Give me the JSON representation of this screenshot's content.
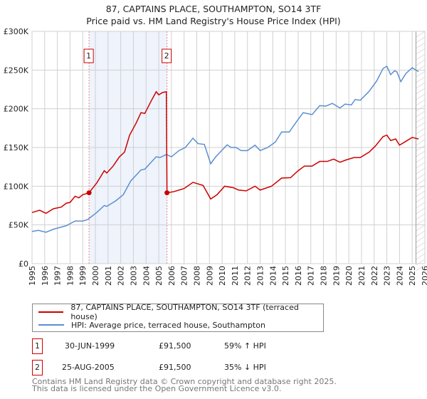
{
  "title_line1": "87, CAPTAINS PLACE, SOUTHAMPTON, SO14 3TF",
  "title_line2": "Price paid vs. HM Land Registry's House Price Index (HPI)",
  "chart_data": {
    "type": "line",
    "xlim": [
      1995,
      2026
    ],
    "ylim": [
      0,
      300000
    ],
    "yticks": [
      {
        "v": 0,
        "label": "£0"
      },
      {
        "v": 50000,
        "label": "£50K"
      },
      {
        "v": 100000,
        "label": "£100K"
      },
      {
        "v": 150000,
        "label": "£150K"
      },
      {
        "v": 200000,
        "label": "£200K"
      },
      {
        "v": 250000,
        "label": "£250K"
      },
      {
        "v": 300000,
        "label": "£300K"
      }
    ],
    "xticks": [
      "1995",
      "1996",
      "1997",
      "1998",
      "1999",
      "2000",
      "2001",
      "2002",
      "2003",
      "2004",
      "2005",
      "2006",
      "2007",
      "2008",
      "2009",
      "2010",
      "2011",
      "2012",
      "2013",
      "2014",
      "2015",
      "2016",
      "2017",
      "2018",
      "2019",
      "2020",
      "2021",
      "2022",
      "2023",
      "2024",
      "2025",
      "2026"
    ],
    "grid": true,
    "shaded_range": [
      1999.5,
      2005.65
    ],
    "forecast_hatch_from": 2025.3,
    "series": [
      {
        "name": "87, CAPTAINS PLACE, SOUTHAMPTON, SO14 3TF (terraced house)",
        "color": "#cc0000",
        "x": [
          1995.0,
          1995.6,
          1996.1,
          1996.7,
          1997.3,
          1997.7,
          1998.0,
          1998.4,
          1998.7,
          1999.0,
          1999.5,
          2000.1,
          2000.7,
          2000.9,
          2001.4,
          2001.9,
          2002.3,
          2002.7,
          2003.2,
          2003.6,
          2003.9,
          2004.4,
          2004.8,
          2005.0,
          2005.3,
          2005.6,
          2005.65,
          2006.2,
          2007.0,
          2007.7,
          2008.5,
          2009.1,
          2009.6,
          2010.2,
          2010.9,
          2011.3,
          2011.9,
          2012.6,
          2013.0,
          2013.9,
          2014.7,
          2015.4,
          2016.0,
          2016.5,
          2017.1,
          2017.7,
          2018.3,
          2018.8,
          2019.3,
          2019.8,
          2020.4,
          2020.9,
          2021.6,
          2022.1,
          2022.7,
          2023.0,
          2023.3,
          2023.7,
          2024.0,
          2024.5,
          2025.0,
          2025.5
        ],
        "y": [
          66000,
          69000,
          65000,
          71000,
          73000,
          78000,
          79000,
          87000,
          85000,
          89000,
          91500,
          104000,
          120000,
          117000,
          126000,
          138000,
          144000,
          166000,
          181000,
          195000,
          194000,
          210000,
          222000,
          218000,
          221000,
          222000,
          91500,
          93000,
          97000,
          105000,
          101000,
          83500,
          89000,
          100000,
          98000,
          95000,
          94000,
          100000,
          95000,
          100000,
          110500,
          111000,
          120000,
          126000,
          126000,
          132000,
          132000,
          135000,
          131000,
          134000,
          137000,
          137000,
          144000,
          152000,
          164000,
          166000,
          159000,
          161000,
          153000,
          158000,
          163000,
          161000
        ]
      },
      {
        "name": "HPI: Average price, terraced house, Southampton",
        "color": "#5b8fd0",
        "x": [
          1995.0,
          1995.5,
          1996.1,
          1996.7,
          1997.7,
          1998.4,
          1999.0,
          1999.4,
          2000.1,
          2000.7,
          2000.9,
          2001.6,
          2002.2,
          2002.8,
          2003.6,
          2003.9,
          2004.8,
          2005.1,
          2005.6,
          2006.0,
          2006.6,
          2007.1,
          2007.7,
          2008.1,
          2008.6,
          2009.1,
          2009.5,
          2010.4,
          2010.7,
          2011.1,
          2011.5,
          2012.0,
          2012.6,
          2013.0,
          2013.6,
          2014.2,
          2014.7,
          2015.3,
          2015.9,
          2016.4,
          2017.1,
          2017.7,
          2018.2,
          2018.7,
          2019.3,
          2019.7,
          2020.2,
          2020.5,
          2020.9,
          2021.6,
          2022.2,
          2022.7,
          2023.0,
          2023.3,
          2023.6,
          2023.8,
          2024.1,
          2024.5,
          2025.0,
          2025.5
        ],
        "y": [
          41500,
          43000,
          40500,
          44500,
          49000,
          55000,
          55000,
          57000,
          66000,
          75000,
          74000,
          81000,
          89000,
          107000,
          121000,
          122000,
          138000,
          137000,
          141000,
          138000,
          146000,
          150000,
          162000,
          155000,
          154000,
          129000,
          138000,
          153500,
          150000,
          150000,
          146000,
          146000,
          153000,
          146000,
          150000,
          157000,
          170000,
          170000,
          184000,
          195000,
          192500,
          204000,
          203500,
          207000,
          201000,
          206000,
          205000,
          212000,
          211000,
          222500,
          236000,
          252000,
          255000,
          244000,
          249000,
          247500,
          235000,
          245500,
          253000,
          248000
        ]
      }
    ],
    "sales": [
      {
        "label": "1",
        "x": 1999.5,
        "y": 91500
      },
      {
        "label": "2",
        "x": 2005.65,
        "y": 91500
      }
    ]
  },
  "legend": {
    "red": "87, CAPTAINS PLACE, SOUTHAMPTON, SO14 3TF (terraced house)",
    "blue": "HPI: Average price, terraced house, Southampton"
  },
  "transactions": [
    {
      "num": "1",
      "date": "30-JUN-1999",
      "price": "£91,500",
      "hpi": "59% ↑ HPI"
    },
    {
      "num": "2",
      "date": "25-AUG-2005",
      "price": "£91,500",
      "hpi": "35% ↓ HPI"
    }
  ],
  "footer": {
    "line1": "Contains HM Land Registry data © Crown copyright and database right 2025.",
    "line2": "This data is licensed under the Open Government Licence v3.0."
  },
  "colors": {
    "red": "#cc0000",
    "blue": "#5b8fd0",
    "shade": "#eef3fc"
  }
}
